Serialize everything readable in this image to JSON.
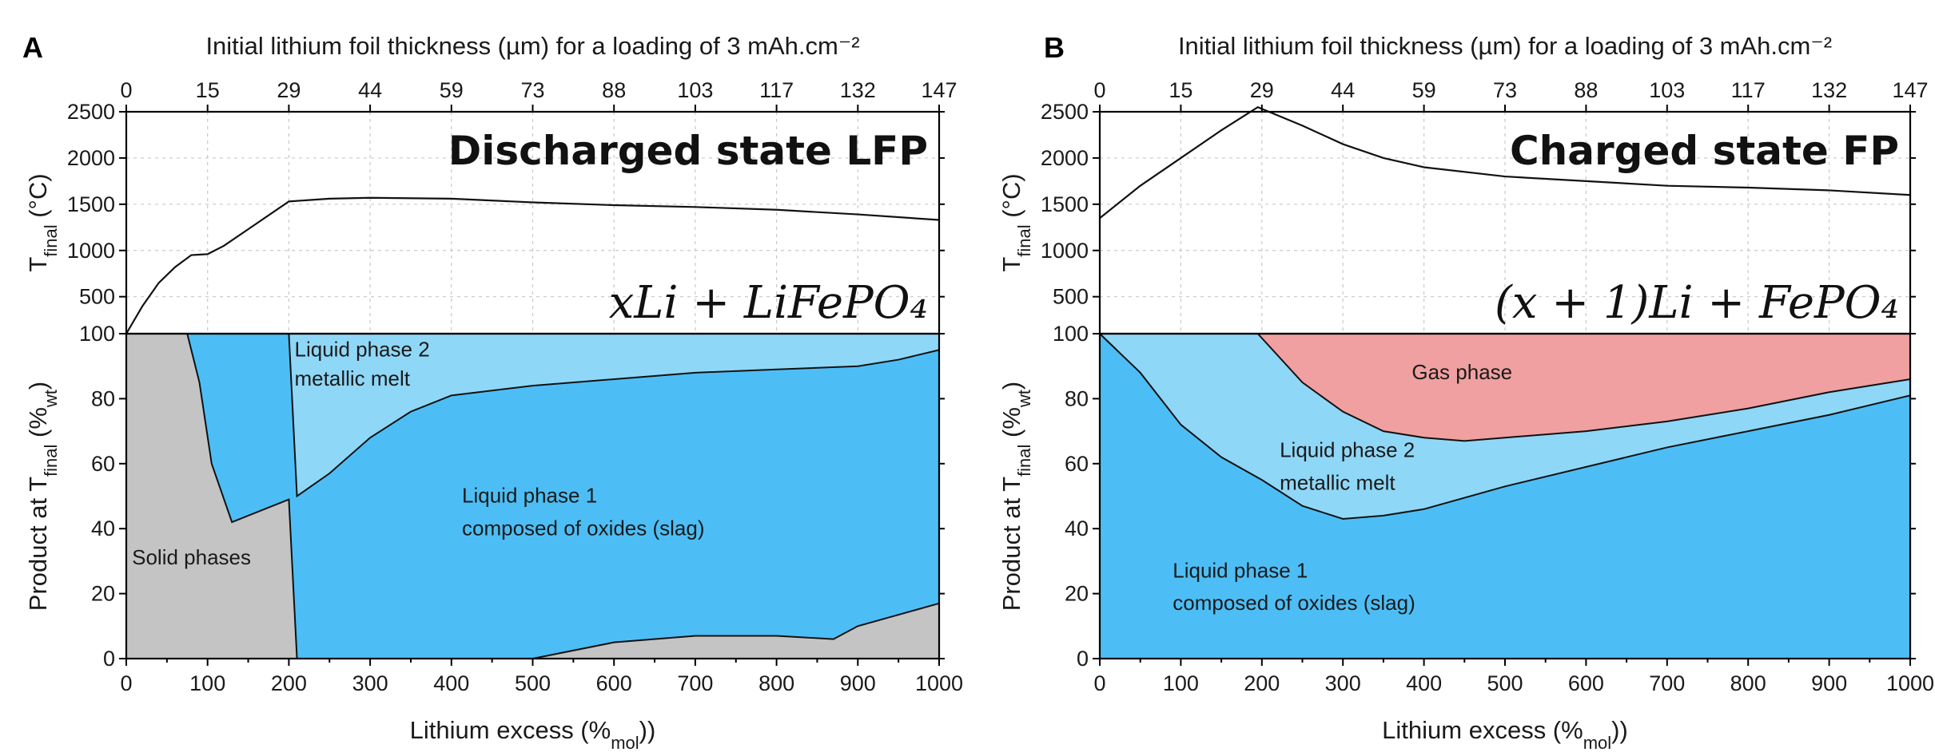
{
  "chart_data": [
    {
      "panel": "A",
      "type": "area",
      "top_axis_label": "Initial lithium foil thickness (µm) for a loading of 3 mAh.cm⁻²",
      "top_ticks": [
        "0",
        "15",
        "29",
        "44",
        "59",
        "73",
        "88",
        "103",
        "117",
        "132",
        "147"
      ],
      "xlabel": "Lithium excess (%mol))",
      "xlim": [
        0,
        1000
      ],
      "xticks": [
        0,
        100,
        200,
        300,
        400,
        500,
        600,
        700,
        800,
        900,
        1000
      ],
      "top_chart": {
        "ylabel": "Tfinal (°C)",
        "ylim": [
          100,
          2500
        ],
        "yticks": [
          100,
          500,
          1000,
          1500,
          2000,
          2500
        ],
        "state_label": "Discharged state LFP",
        "equation": "xLi + LiFePO₄",
        "series": [
          {
            "x": [
              0,
              20,
              40,
              60,
              80,
              100,
              120,
              150,
              200,
              250,
              300,
              400,
              500,
              600,
              700,
              800,
              900,
              1000
            ],
            "y": [
              100,
              400,
              650,
              820,
              950,
              960,
              1050,
              1230,
              1530,
              1560,
              1570,
              1560,
              1520,
              1490,
              1470,
              1440,
              1390,
              1330
            ]
          }
        ]
      },
      "bottom_chart": {
        "ylabel": "Product at Tfinal (%wt)",
        "ylim": [
          0,
          100
        ],
        "yticks": [
          0,
          20,
          40,
          60,
          80,
          100
        ],
        "regions": [
          {
            "name": "Solid phases",
            "color": "#c4c4c4",
            "label": "Solid phases"
          },
          {
            "name": "Liquid phase 1",
            "color": "#4dbef5",
            "label": "Liquid phase 1 composed of oxides (slag)"
          },
          {
            "name": "Liquid phase 2",
            "color": "#8fd7f7",
            "label": "Liquid phase 2 metallic melt"
          }
        ],
        "solid_boundary": {
          "x": [
            0,
            75,
            90,
            105,
            130,
            190,
            200,
            210
          ],
          "y": [
            100,
            100,
            85,
            60,
            42,
            48,
            49,
            0
          ]
        },
        "solid_bottom_boundary": {
          "x": [
            500,
            600,
            700,
            800,
            870,
            900,
            1000
          ],
          "y": [
            0,
            5,
            7,
            7,
            6,
            10,
            17
          ]
        },
        "liquid2_boundary": {
          "x": [
            200,
            210,
            250,
            300,
            350,
            400,
            500,
            600,
            700,
            800,
            900,
            950,
            1000
          ],
          "y": [
            100,
            50,
            57,
            68,
            76,
            81,
            84,
            86,
            88,
            89,
            90,
            92,
            95
          ]
        }
      }
    },
    {
      "panel": "B",
      "type": "area",
      "top_axis_label": "Initial lithium foil thickness (µm) for a loading of 3 mAh.cm⁻²",
      "top_ticks": [
        "0",
        "15",
        "29",
        "44",
        "59",
        "73",
        "88",
        "103",
        "117",
        "132",
        "147"
      ],
      "xlabel": "Lithium excess (%mol))",
      "xlim": [
        0,
        1000
      ],
      "xticks": [
        0,
        100,
        200,
        300,
        400,
        500,
        600,
        700,
        800,
        900,
        1000
      ],
      "top_chart": {
        "ylabel": "Tfinal (°C)",
        "ylim": [
          100,
          2500
        ],
        "yticks": [
          100,
          500,
          1000,
          1500,
          2000,
          2500
        ],
        "state_label": "Charged state FP",
        "equation": "(x + 1)Li + FePO₄",
        "series": [
          {
            "x": [
              0,
              50,
              100,
              150,
              195,
              250,
              300,
              350,
              400,
              500,
              600,
              700,
              800,
              900,
              1000
            ],
            "y": [
              1350,
              1700,
              2000,
              2300,
              2550,
              2350,
              2150,
              2000,
              1900,
              1800,
              1750,
              1700,
              1680,
              1650,
              1600
            ]
          }
        ]
      },
      "bottom_chart": {
        "ylabel": "Product at Tfinal (%wt)",
        "ylim": [
          0,
          100
        ],
        "yticks": [
          0,
          20,
          40,
          60,
          80,
          100
        ],
        "regions": [
          {
            "name": "Liquid phase 1",
            "color": "#4dbef5",
            "label": "Liquid phase 1 composed of oxides (slag)"
          },
          {
            "name": "Liquid phase 2",
            "color": "#8fd7f7",
            "label": "Liquid phase 2 metallic melt"
          },
          {
            "name": "Gas phase",
            "color": "#f0a0a0",
            "label": "Gas phase"
          }
        ],
        "liquid1_boundary": {
          "x": [
            0,
            50,
            100,
            150,
            200,
            250,
            300,
            350,
            400,
            500,
            600,
            700,
            800,
            900,
            1000
          ],
          "y": [
            100,
            88,
            72,
            62,
            55,
            47,
            43,
            44,
            46,
            53,
            59,
            65,
            70,
            75,
            81
          ]
        },
        "gas_boundary": {
          "x": [
            195,
            250,
            300,
            350,
            400,
            450,
            500,
            600,
            700,
            800,
            900,
            1000
          ],
          "y": [
            100,
            85,
            76,
            70,
            68,
            67,
            68,
            70,
            73,
            77,
            82,
            86
          ]
        }
      }
    }
  ]
}
